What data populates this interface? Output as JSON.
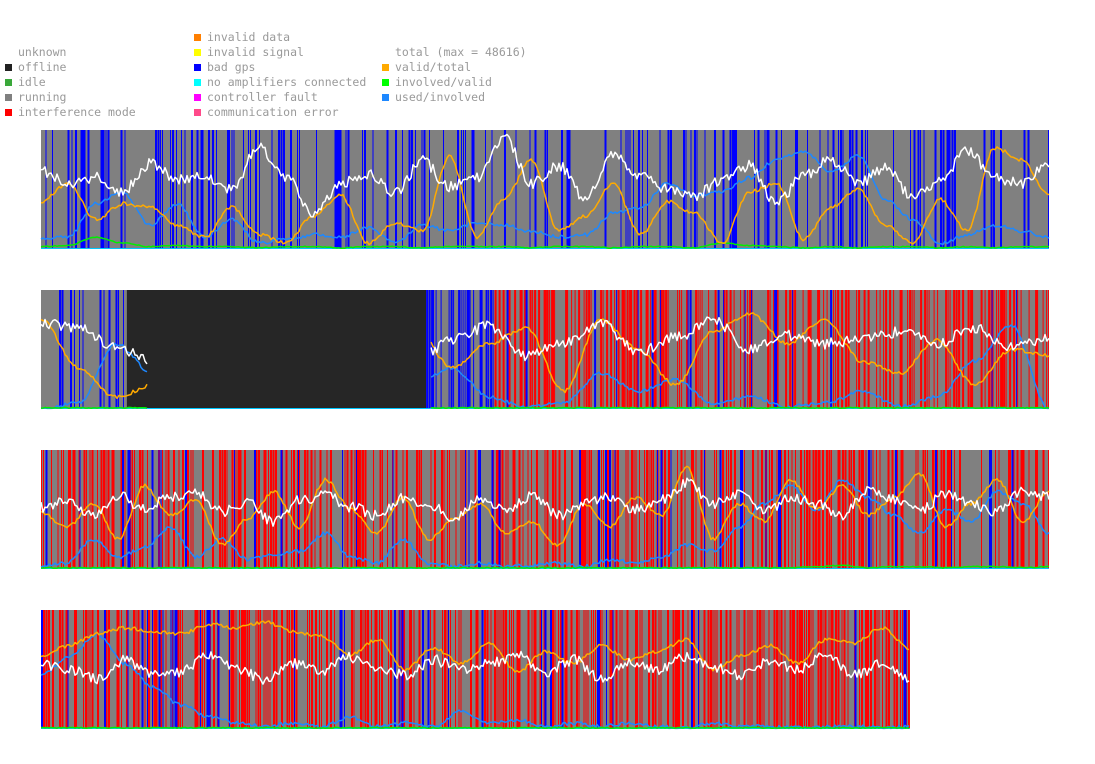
{
  "legend": {
    "status": [
      {
        "label": "unknown",
        "color": "#ffffff"
      },
      {
        "label": "offline",
        "color": "#222222"
      },
      {
        "label": "idle",
        "color": "#3aa83a"
      },
      {
        "label": "running",
        "color": "#808080"
      },
      {
        "label": "interference mode",
        "color": "#ff0000"
      }
    ],
    "errors": [
      {
        "label": "invalid data",
        "color": "#ff7f00"
      },
      {
        "label": "invalid signal",
        "color": "#ffff00"
      },
      {
        "label": "bad gps",
        "color": "#0000ff"
      },
      {
        "label": "no amplifiers connected",
        "color": "#00ffff"
      },
      {
        "label": "controller fault",
        "color": "#ff00ff"
      },
      {
        "label": "communication error",
        "color": "#ff4a8a"
      }
    ],
    "metrics": [
      {
        "label": "total (max = 48616)",
        "color": "#ffffff"
      },
      {
        "label": "valid/total",
        "color": "#ffaa00"
      },
      {
        "label": "involved/valid",
        "color": "#00ff00"
      },
      {
        "label": "used/involved",
        "color": "#1e88ff"
      }
    ]
  },
  "colors": {
    "running": "#808080",
    "offline": "#262626",
    "bad_gps": "#0000ff",
    "interference": "#ff0000",
    "total": "#ffffff",
    "valid_total": "#ffaa00",
    "involved_valid": "#00ee00",
    "used_involved": "#1e88ff",
    "baseline": "#00c8ff"
  },
  "chart_data": [
    {
      "type": "line",
      "panel": 1,
      "x_extent": 1.0,
      "status_segments": [
        {
          "from": 0.0,
          "to": 1.0,
          "state": "running"
        },
        {
          "from": 0.0,
          "to": 1.0,
          "state": "bad gps",
          "density": 0.22
        }
      ],
      "series": [
        {
          "name": "total",
          "values": [
            0.66,
            0.55,
            0.6,
            0.48,
            0.72,
            0.58,
            0.62,
            0.5,
            0.86,
            0.6,
            0.3,
            0.55,
            0.63,
            0.47,
            0.74,
            0.52,
            0.6,
            0.95,
            0.55,
            0.7,
            0.42,
            0.78,
            0.62,
            0.5,
            0.45,
            0.58,
            0.7,
            0.38,
            0.62,
            0.75,
            0.55,
            0.68,
            0.44,
            0.58,
            0.82,
            0.6,
            0.55,
            0.72
          ]
        },
        {
          "name": "valid/total",
          "values": [
            0.4,
            0.55,
            0.25,
            0.38,
            0.35,
            0.2,
            0.1,
            0.35,
            0.12,
            0.05,
            0.28,
            0.45,
            0.05,
            0.22,
            0.15,
            0.78,
            0.1,
            0.42,
            0.75,
            0.15,
            0.28,
            0.55,
            0.12,
            0.4,
            0.3,
            0.05,
            0.48,
            0.55,
            0.08,
            0.35,
            0.5,
            0.2,
            0.05,
            0.42,
            0.15,
            0.85,
            0.75,
            0.45
          ]
        },
        {
          "name": "involved/valid",
          "values": [
            0.02,
            0.03,
            0.1,
            0.05,
            0.02,
            0.03,
            0.02,
            0.02,
            0.01,
            0.02,
            0.02,
            0.01,
            0.02,
            0.02,
            0.01,
            0.02,
            0.02,
            0.02,
            0.01,
            0.02,
            0.02,
            0.01,
            0.02,
            0.02,
            0.01,
            0.05,
            0.03,
            0.02,
            0.01,
            0.02,
            0.01,
            0.02,
            0.02,
            0.01,
            0.02,
            0.01,
            0.02,
            0.02
          ]
        },
        {
          "name": "used/involved",
          "values": [
            0.08,
            0.1,
            0.38,
            0.48,
            0.2,
            0.38,
            0.1,
            0.25,
            0.05,
            0.08,
            0.12,
            0.1,
            0.18,
            0.05,
            0.2,
            0.15,
            0.22,
            0.2,
            0.15,
            0.1,
            0.12,
            0.3,
            0.35,
            0.55,
            0.45,
            0.48,
            0.6,
            0.75,
            0.82,
            0.65,
            0.78,
            0.42,
            0.25,
            0.05,
            0.12,
            0.2,
            0.15,
            0.1
          ]
        }
      ]
    },
    {
      "type": "line",
      "panel": 2,
      "x_extent": 1.0,
      "status_segments": [
        {
          "from": 0.0,
          "to": 0.085,
          "state": "running"
        },
        {
          "from": 0.0,
          "to": 0.085,
          "state": "bad gps",
          "density": 0.25
        },
        {
          "from": 0.085,
          "to": 0.382,
          "state": "offline"
        },
        {
          "from": 0.382,
          "to": 1.0,
          "state": "running"
        },
        {
          "from": 0.382,
          "to": 0.45,
          "state": "bad gps",
          "density": 0.45
        },
        {
          "from": 0.45,
          "to": 1.0,
          "state": "interference mode",
          "density": 0.45
        },
        {
          "from": 0.45,
          "to": 1.0,
          "state": "bad gps",
          "density": 0.05
        }
      ],
      "gap": [
        0.085,
        0.382
      ],
      "series": [
        {
          "name": "total",
          "values": [
            0.72,
            0.68,
            0.52,
            0.4,
            0.45,
            0.35,
            0.75,
            0.65,
            0.52,
            0.68,
            0.4,
            0.58,
            0.7,
            0.45,
            0.55,
            0.72,
            0.48,
            0.6,
            0.75,
            0.5,
            0.62,
            0.55,
            0.58,
            0.65,
            0.55,
            0.68,
            0.52,
            0.6
          ]
        },
        {
          "name": "valid/total",
          "values": [
            0.75,
            0.35,
            0.1,
            0.2,
            0.35,
            0.3,
            0.85,
            0.92,
            0.78,
            0.45,
            0.7,
            0.35,
            0.55,
            0.68,
            0.15,
            0.75,
            0.5,
            0.2,
            0.65,
            0.8,
            0.55,
            0.75,
            0.4,
            0.3,
            0.58,
            0.2,
            0.5,
            0.45
          ]
        },
        {
          "name": "involved/valid",
          "values": [
            0.01,
            0.01,
            0.01,
            0.01,
            0.01,
            0.01,
            0.01,
            0.01,
            0.02,
            0.01,
            0.01,
            0.01,
            0.01,
            0.01,
            0.01,
            0.01,
            0.01,
            0.01,
            0.01,
            0.01,
            0.01,
            0.01,
            0.01,
            0.01,
            0.01,
            0.01,
            0.01,
            0.01
          ]
        },
        {
          "name": "used/involved",
          "values": [
            0.0,
            0.05,
            0.55,
            0.3,
            0.1,
            0.25,
            0.2,
            0.35,
            0.25,
            0.05,
            0.2,
            0.35,
            0.1,
            0.02,
            0.05,
            0.3,
            0.15,
            0.25,
            0.05,
            0.1,
            0.02,
            0.05,
            0.15,
            0.02,
            0.1,
            0.4,
            0.7,
            0.0
          ]
        }
      ]
    },
    {
      "type": "line",
      "panel": 3,
      "x_extent": 1.0,
      "status_segments": [
        {
          "from": 0.0,
          "to": 1.0,
          "state": "running"
        },
        {
          "from": 0.0,
          "to": 1.0,
          "state": "interference mode",
          "density": 0.42
        },
        {
          "from": 0.0,
          "to": 1.0,
          "state": "bad gps",
          "density": 0.06
        }
      ],
      "series": [
        {
          "name": "total",
          "values": [
            0.52,
            0.58,
            0.45,
            0.62,
            0.5,
            0.6,
            0.65,
            0.48,
            0.55,
            0.4,
            0.58,
            0.62,
            0.52,
            0.45,
            0.6,
            0.55,
            0.42,
            0.58,
            0.5,
            0.62,
            0.45,
            0.55,
            0.6,
            0.5,
            0.58,
            0.72,
            0.55,
            0.62,
            0.48,
            0.6,
            0.55,
            0.45,
            0.65,
            0.58,
            0.5,
            0.62,
            0.55,
            0.48,
            0.65,
            0.6
          ]
        },
        {
          "name": "valid/total",
          "values": [
            0.48,
            0.35,
            0.55,
            0.25,
            0.7,
            0.45,
            0.58,
            0.2,
            0.42,
            0.65,
            0.35,
            0.75,
            0.5,
            0.3,
            0.6,
            0.25,
            0.42,
            0.55,
            0.3,
            0.4,
            0.2,
            0.55,
            0.35,
            0.6,
            0.45,
            0.85,
            0.25,
            0.55,
            0.4,
            0.75,
            0.5,
            0.7,
            0.45,
            0.6,
            0.8,
            0.35,
            0.55,
            0.75,
            0.4,
            0.65
          ]
        },
        {
          "name": "involved/valid",
          "values": [
            0.01,
            0.01,
            0.01,
            0.01,
            0.01,
            0.01,
            0.01,
            0.01,
            0.01,
            0.01,
            0.01,
            0.01,
            0.01,
            0.01,
            0.01,
            0.01,
            0.01,
            0.01,
            0.01,
            0.01,
            0.01,
            0.01,
            0.01,
            0.01,
            0.01,
            0.01,
            0.01,
            0.01,
            0.01,
            0.01,
            0.02,
            0.03,
            0.01,
            0.02,
            0.02,
            0.01,
            0.02,
            0.02,
            0.01,
            0.02
          ]
        },
        {
          "name": "used/involved",
          "values": [
            0.02,
            0.05,
            0.25,
            0.1,
            0.18,
            0.35,
            0.1,
            0.25,
            0.08,
            0.12,
            0.15,
            0.3,
            0.1,
            0.05,
            0.25,
            0.05,
            0.02,
            0.05,
            0.02,
            0.03,
            0.05,
            0.02,
            0.08,
            0.05,
            0.1,
            0.2,
            0.15,
            0.35,
            0.55,
            0.7,
            0.5,
            0.75,
            0.6,
            0.45,
            0.3,
            0.5,
            0.4,
            0.65,
            0.55,
            0.3
          ]
        }
      ]
    },
    {
      "type": "line",
      "panel": 4,
      "x_extent": 0.862,
      "status_segments": [
        {
          "from": 0.0,
          "to": 0.862,
          "state": "running"
        },
        {
          "from": 0.0,
          "to": 0.862,
          "state": "interference mode",
          "density": 0.5
        },
        {
          "from": 0.0,
          "to": 0.862,
          "state": "bad gps",
          "density": 0.07
        }
      ],
      "series": [
        {
          "name": "total",
          "values": [
            0.55,
            0.5,
            0.42,
            0.58,
            0.45,
            0.48,
            0.62,
            0.5,
            0.42,
            0.55,
            0.48,
            0.6,
            0.52,
            0.45,
            0.58,
            0.5,
            0.55,
            0.62,
            0.48,
            0.58,
            0.42,
            0.55,
            0.5,
            0.6,
            0.52,
            0.45,
            0.58,
            0.5,
            0.62,
            0.45,
            0.55,
            0.4
          ]
        },
        {
          "name": "valid/total",
          "values": [
            0.62,
            0.7,
            0.8,
            0.85,
            0.82,
            0.8,
            0.88,
            0.85,
            0.9,
            0.82,
            0.78,
            0.62,
            0.75,
            0.5,
            0.68,
            0.55,
            0.72,
            0.48,
            0.65,
            0.55,
            0.7,
            0.58,
            0.65,
            0.75,
            0.5,
            0.62,
            0.7,
            0.55,
            0.75,
            0.72,
            0.85,
            0.68
          ]
        },
        {
          "name": "involved/valid",
          "values": [
            0.01,
            0.01,
            0.01,
            0.01,
            0.01,
            0.01,
            0.01,
            0.01,
            0.01,
            0.01,
            0.01,
            0.01,
            0.01,
            0.01,
            0.01,
            0.01,
            0.01,
            0.01,
            0.01,
            0.01,
            0.01,
            0.01,
            0.01,
            0.01,
            0.01,
            0.01,
            0.01,
            0.01,
            0.01,
            0.01,
            0.01,
            0.01
          ]
        },
        {
          "name": "used/involved",
          "values": [
            0.45,
            0.6,
            0.8,
            0.55,
            0.35,
            0.2,
            0.1,
            0.05,
            0.02,
            0.05,
            0.02,
            0.1,
            0.02,
            0.05,
            0.02,
            0.15,
            0.05,
            0.08,
            0.02,
            0.05,
            0.02,
            0.05,
            0.02,
            0.01,
            0.05,
            0.02,
            0.02,
            0.01,
            0.02,
            0.02,
            0.01,
            0.02
          ]
        }
      ]
    }
  ]
}
